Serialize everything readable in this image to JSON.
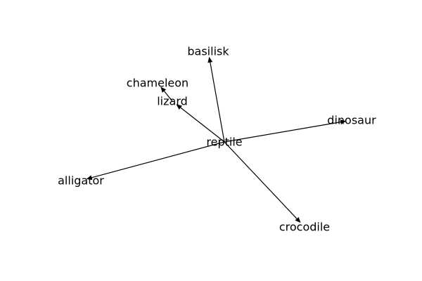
{
  "nodes": [
    {
      "id": "reptile",
      "label": "reptile"
    },
    {
      "id": "basilisk",
      "label": "basilisk"
    },
    {
      "id": "chameleon",
      "label": "chameleon"
    },
    {
      "id": "lizard",
      "label": "lizard"
    },
    {
      "id": "dinosaur",
      "label": "dinosaur"
    },
    {
      "id": "alligator",
      "label": "alligator"
    },
    {
      "id": "crocodile",
      "label": "crocodile"
    }
  ],
  "edges": [
    {
      "from": "reptile",
      "to": "basilisk"
    },
    {
      "from": "reptile",
      "to": "lizard"
    },
    {
      "from": "lizard",
      "to": "chameleon"
    },
    {
      "from": "reptile",
      "to": "dinosaur"
    },
    {
      "from": "reptile",
      "to": "alligator"
    },
    {
      "from": "reptile",
      "to": "crocodile"
    }
  ],
  "colors": {
    "edge": "#000000",
    "text": "#000000",
    "background": "#ffffff"
  }
}
